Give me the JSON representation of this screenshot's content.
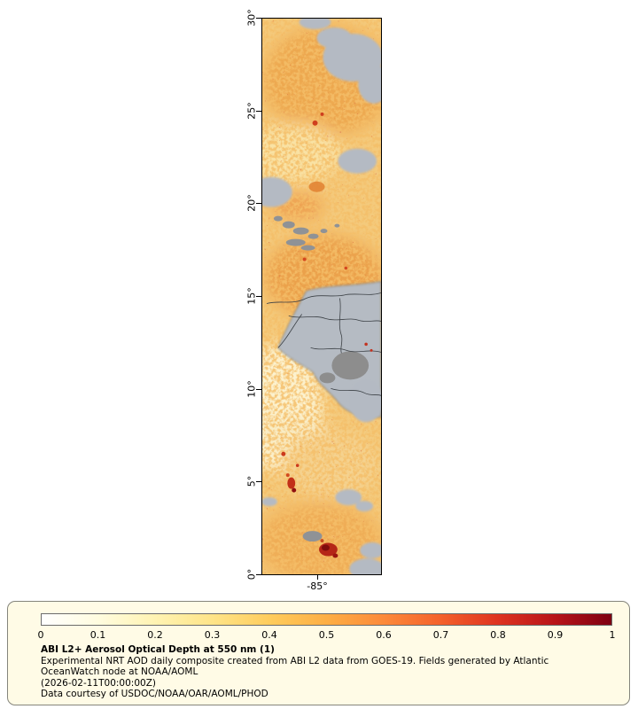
{
  "map": {
    "y_axis": {
      "ticks": [
        "30°",
        "25°",
        "20°",
        "15°",
        "10°",
        "5°",
        "0°"
      ]
    },
    "x_axis": {
      "ticks": [
        "-85°"
      ]
    }
  },
  "legend": {
    "title": "ABI L2+ Aerosol Optical Depth at 550 nm (1)",
    "description": "Experimental NRT AOD daily composite created from ABI L2 data from GOES-19. Fields generated by Atlantic OceanWatch node at NOAA/AOML",
    "timestamp": "(2026-02-11T00:00:00Z)",
    "courtesy": "Data courtesy of USDOC/NOAA/OAR/AOML/PHOD",
    "colorbar": {
      "ticks": [
        "0",
        "0.1",
        "0.2",
        "0.3",
        "0.4",
        "0.5",
        "0.6",
        "0.7",
        "0.8",
        "0.9",
        "1"
      ],
      "colors": [
        "#ffffff",
        "#fffcdf",
        "#fff3b2",
        "#fee488",
        "#fecc5c",
        "#fdae44",
        "#fc8a3a",
        "#f4612b",
        "#de3320",
        "#b81419",
        "#7e0011"
      ]
    }
  },
  "chart_data": {
    "type": "heatmap",
    "title": "ABI L2+ Aerosol Optical Depth at 550 nm (1)",
    "y_ticks": [
      "30°",
      "25°",
      "20°",
      "15°",
      "10°",
      "5°",
      "0°"
    ],
    "x_ticks": [
      "-85°"
    ],
    "colorbar_range": [
      0,
      1
    ],
    "colorbar_ticks": [
      0,
      0.1,
      0.2,
      0.3,
      0.4,
      0.5,
      0.6,
      0.7,
      0.8,
      0.9,
      1
    ],
    "legend_position": "bottom"
  }
}
